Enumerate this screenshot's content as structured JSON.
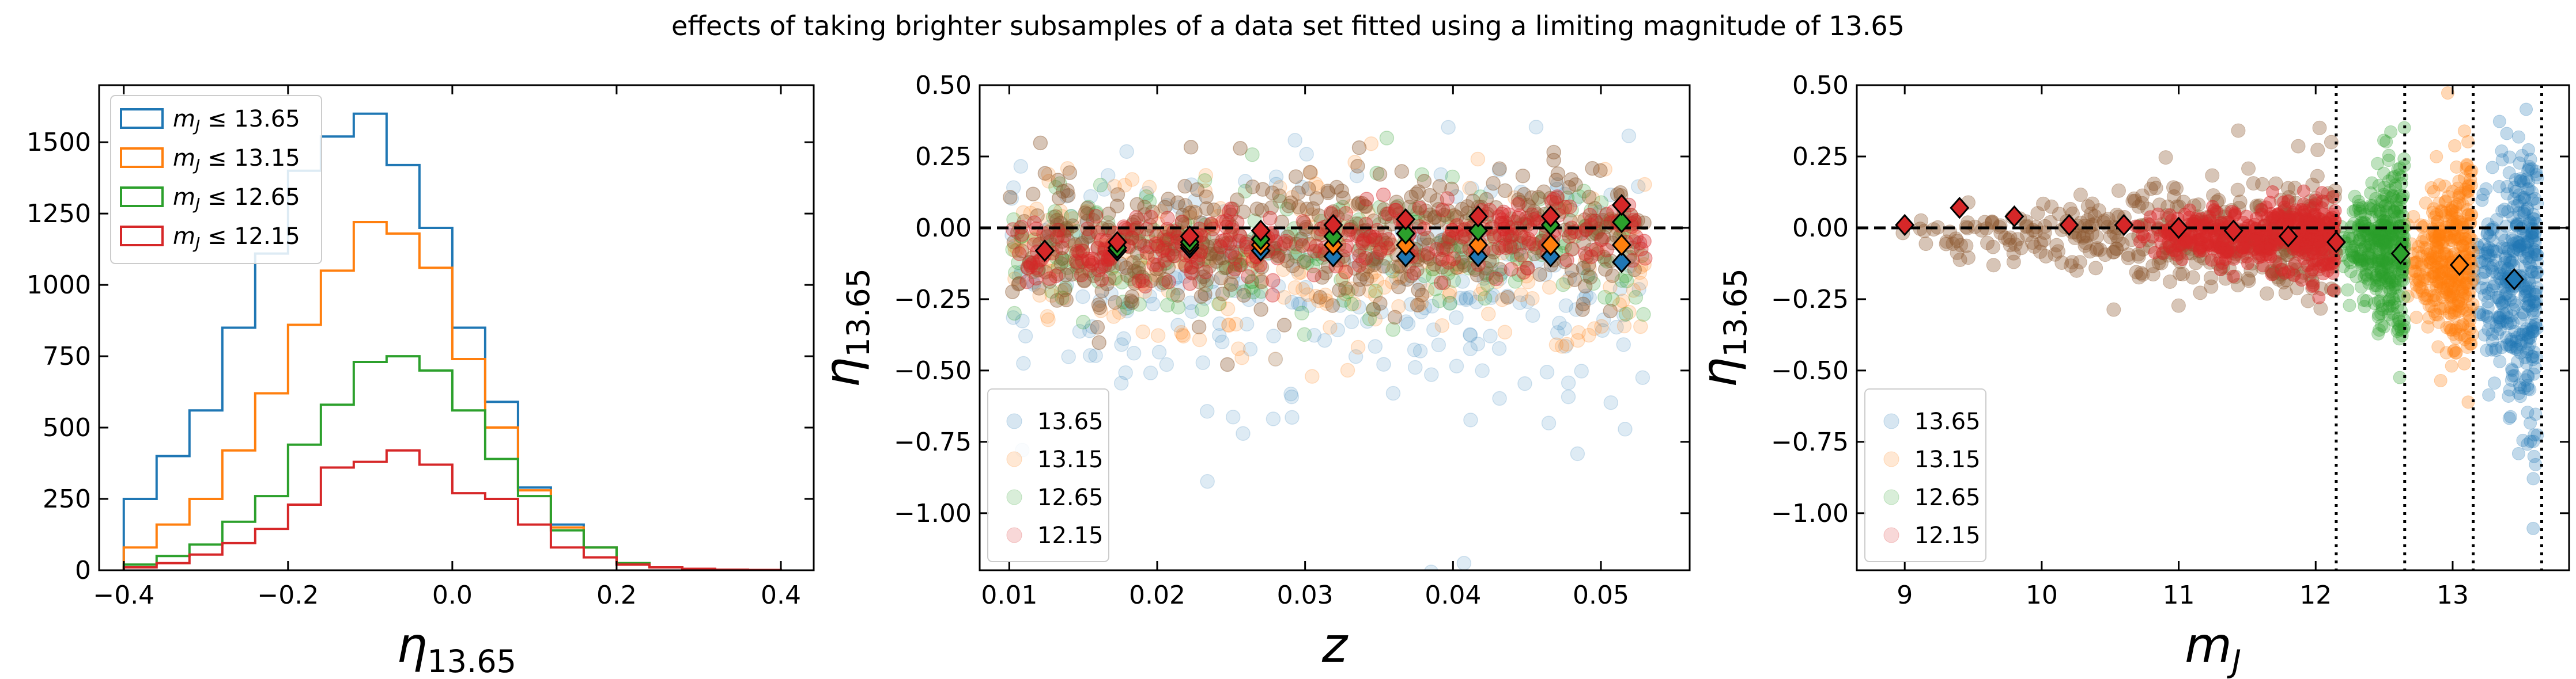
{
  "suptitle": "effects of taking brighter subsamples of a data set fitted using a limiting magnitude of 13.65",
  "colors": {
    "13.65": "#1f77b4",
    "13.15": "#ff7f0e",
    "12.65": "#2ca02c",
    "12.15": "#d62728",
    "brown": "#8c5a32"
  },
  "chart_data": [
    {
      "type": "histogram",
      "xlabel": "η13.65",
      "ylabel": "",
      "xlim": [
        -0.43,
        0.44
      ],
      "ylim": [
        0,
        1700
      ],
      "xticks": [
        "−0.4",
        "−0.2",
        "0.0",
        "0.2",
        "0.4"
      ],
      "yticks": [
        "0",
        "250",
        "500",
        "750",
        "1000",
        "1250",
        "1500"
      ],
      "legend_position": "upper-left",
      "bin_edges": [
        -0.4,
        -0.36,
        -0.32,
        -0.28,
        -0.24,
        -0.2,
        -0.16,
        -0.12,
        -0.08,
        -0.04,
        0.0,
        0.04,
        0.08,
        0.12,
        0.16,
        0.2,
        0.24,
        0.28,
        0.32,
        0.36,
        0.4
      ],
      "series": [
        {
          "name": "m_J ≤ 13.65",
          "color": "#1f77b4",
          "values": [
            250,
            400,
            560,
            850,
            1110,
            1400,
            1520,
            1600,
            1420,
            1200,
            850,
            590,
            290,
            160,
            80,
            25,
            10,
            5,
            2,
            1
          ]
        },
        {
          "name": "m_J ≤ 13.15",
          "color": "#ff7f0e",
          "values": [
            80,
            160,
            250,
            420,
            620,
            860,
            1050,
            1220,
            1180,
            1060,
            740,
            500,
            280,
            150,
            80,
            25,
            10,
            5,
            2,
            1
          ]
        },
        {
          "name": "m_J ≤ 12.65",
          "color": "#2ca02c",
          "values": [
            20,
            50,
            90,
            170,
            260,
            440,
            580,
            730,
            750,
            700,
            560,
            390,
            260,
            140,
            80,
            25,
            10,
            5,
            2,
            1
          ]
        },
        {
          "name": "m_J ≤ 12.15",
          "color": "#d62728",
          "values": [
            10,
            25,
            55,
            95,
            145,
            230,
            360,
            380,
            420,
            370,
            270,
            250,
            160,
            80,
            45,
            20,
            10,
            5,
            2,
            1
          ]
        }
      ]
    },
    {
      "type": "scatter",
      "xlabel": "z",
      "ylabel": "η13.65",
      "xlim": [
        0.008,
        0.056
      ],
      "ylim": [
        -1.2,
        0.5
      ],
      "xticks": [
        "0.01",
        "0.02",
        "0.03",
        "0.04",
        "0.05"
      ],
      "yticks": [
        "0.50",
        "0.25",
        "0.00",
        "−0.25",
        "−0.50",
        "−0.75",
        "−1.00"
      ],
      "reference_line_y": 0.0,
      "legend_position": "lower-left",
      "legend": [
        "13.65",
        "13.15",
        "12.65",
        "12.15"
      ],
      "bins_x": [
        0.0124,
        0.0173,
        0.0222,
        0.027,
        0.0319,
        0.0368,
        0.0417,
        0.0466,
        0.0514
      ],
      "series": [
        {
          "name": "13.65",
          "color": "#1f77b4",
          "medians": [
            -0.08,
            -0.08,
            -0.07,
            -0.08,
            -0.1,
            -0.1,
            -0.1,
            -0.1,
            -0.12
          ]
        },
        {
          "name": "13.15",
          "color": "#ff7f0e",
          "medians": [
            -0.08,
            -0.07,
            -0.06,
            -0.06,
            -0.06,
            -0.06,
            -0.06,
            -0.06,
            -0.06
          ]
        },
        {
          "name": "12.65",
          "color": "#2ca02c",
          "medians": [
            -0.08,
            -0.07,
            -0.05,
            -0.04,
            -0.03,
            -0.02,
            -0.01,
            0.01,
            0.02
          ]
        },
        {
          "name": "12.15",
          "color": "#d62728",
          "medians": [
            -0.08,
            -0.05,
            -0.03,
            -0.01,
            0.01,
            0.03,
            0.04,
            0.04,
            0.08
          ]
        }
      ]
    },
    {
      "type": "scatter",
      "xlabel": "mJ",
      "ylabel": "η13.65",
      "xlim": [
        8.65,
        13.85
      ],
      "ylim": [
        -1.2,
        0.5
      ],
      "xticks": [
        "9",
        "10",
        "11",
        "12",
        "13"
      ],
      "yticks": [
        "0.50",
        "0.25",
        "0.00",
        "−0.25",
        "−0.50",
        "−0.75",
        "−1.00"
      ],
      "reference_line_y": 0.0,
      "vertical_lines_x": [
        12.15,
        12.65,
        13.15,
        13.65
      ],
      "legend_position": "lower-left",
      "legend": [
        "13.65",
        "13.15",
        "12.65",
        "12.15"
      ],
      "median_x": [
        9.0,
        9.4,
        9.8,
        10.2,
        10.6,
        11.0,
        11.4,
        11.8,
        12.15,
        12.62,
        13.05,
        13.45
      ],
      "median_y": [
        0.01,
        0.07,
        0.04,
        0.01,
        0.01,
        0.0,
        -0.01,
        -0.03,
        -0.05,
        -0.09,
        -0.13,
        -0.18
      ],
      "median_colors": [
        "#d62728",
        "#d62728",
        "#d62728",
        "#d62728",
        "#d62728",
        "#d62728",
        "#d62728",
        "#d62728",
        "#d62728",
        "#2ca02c",
        "#ff7f0e",
        "#1f77b4"
      ]
    }
  ]
}
